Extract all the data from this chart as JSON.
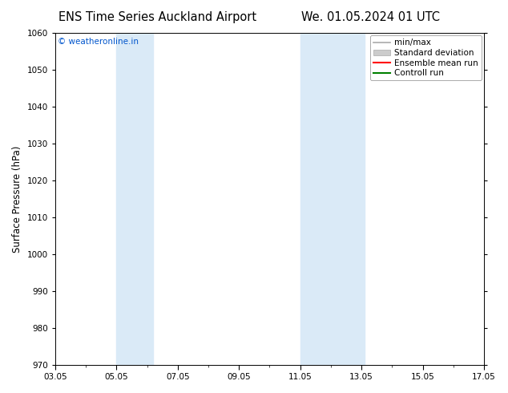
{
  "title_left": "ENS Time Series Auckland Airport",
  "title_right": "We. 01.05.2024 01 UTC",
  "ylabel": "Surface Pressure (hPa)",
  "ylim": [
    970,
    1060
  ],
  "yticks": [
    970,
    980,
    990,
    1000,
    1010,
    1020,
    1030,
    1040,
    1050,
    1060
  ],
  "xlim_start": 0,
  "xlim_end": 14,
  "xtick_labels": [
    "03.05",
    "05.05",
    "07.05",
    "09.05",
    "11.05",
    "13.05",
    "15.05",
    "17.05"
  ],
  "xtick_positions": [
    0,
    2,
    4,
    6,
    8,
    10,
    12,
    14
  ],
  "shaded_bands": [
    {
      "xmin": 2.0,
      "xmax": 3.2,
      "color": "#daeaf7"
    },
    {
      "xmin": 8.0,
      "xmax": 10.1,
      "color": "#daeaf7"
    }
  ],
  "copyright_text": "© weatheronline.in",
  "copyright_color": "#0055cc",
  "background_color": "#ffffff",
  "title_fontsize": 10.5,
  "tick_fontsize": 7.5,
  "ylabel_fontsize": 8.5,
  "legend_fontsize": 7.5
}
